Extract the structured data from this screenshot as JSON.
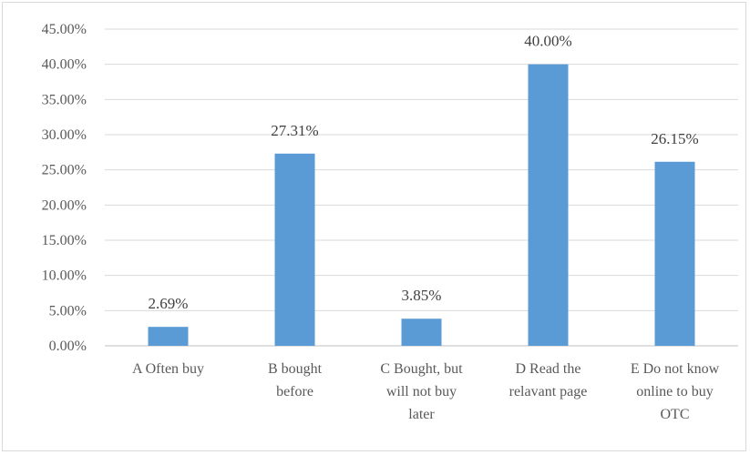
{
  "chart_data": {
    "type": "bar",
    "title": "",
    "xlabel": "",
    "ylabel": "",
    "ylim": [
      0,
      45
    ],
    "y_tick_step": 5,
    "y_tick_labels": [
      "0.00%",
      "5.00%",
      "10.00%",
      "15.00%",
      "20.00%",
      "25.00%",
      "30.00%",
      "35.00%",
      "40.00%",
      "45.00%"
    ],
    "grid": true,
    "legend": "none",
    "categories": [
      [
        "A Often buy"
      ],
      [
        "B bought",
        "before"
      ],
      [
        "C Bought, but",
        "will not buy",
        "later"
      ],
      [
        "D Read the",
        "relavant page"
      ],
      [
        "E Do not know",
        "online to buy",
        "OTC"
      ]
    ],
    "values": [
      2.69,
      27.31,
      3.85,
      40.0,
      26.15
    ],
    "data_labels": [
      "2.69%",
      "27.31%",
      "3.85%",
      "40.00%",
      "26.15%"
    ],
    "colors": {
      "bar": "#5b9bd5",
      "grid": "#d9d9d9",
      "axis": "#bfbfbf"
    }
  }
}
